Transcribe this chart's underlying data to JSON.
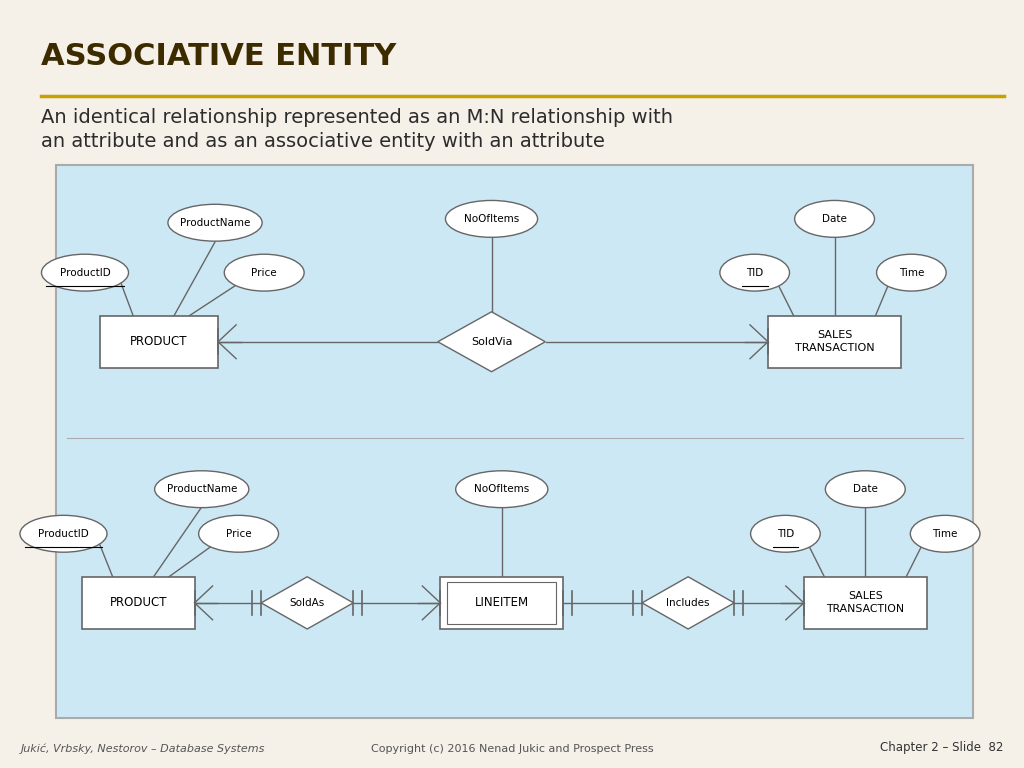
{
  "title": "ASSOCIATIVE ENTITY",
  "subtitle_line1": "An identical relationship represented as an M:N relationship with",
  "subtitle_line2": "an attribute and as an associative entity with an attribute",
  "bg_color": "#f5f0e8",
  "diagram_bg": "#cde8f5",
  "title_color": "#3d2b00",
  "subtitle_color": "#2c2c2c",
  "footer_left": "Jukić, Vrbsky, Nestorov – Database Systems",
  "footer_center": "Copyright (c) 2016 Nenad Jukic and Prospect Press",
  "footer_right": "Chapter 2 – Slide  82",
  "gold_line_color": "#c8a000",
  "entity_edge": "#666666",
  "entity_face": "#ffffff",
  "line_color": "#666666"
}
